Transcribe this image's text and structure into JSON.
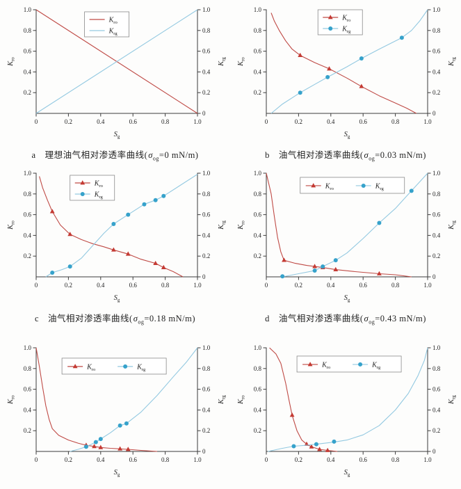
{
  "colors": {
    "oil_line": "#bf4a45",
    "oil_marker": "#c43a33",
    "gas_line": "#93c9e1",
    "gas_marker": "#36a2cb",
    "axis": "#3c3c3c",
    "text": "#222222",
    "legend_border": "#8a8a8a",
    "legend_fill": "#ffffff"
  },
  "axis_labels": {
    "x_main": "S",
    "x_sub": "g",
    "left_main": "K",
    "left_sub": "ro",
    "right_main": "K",
    "right_sub": "rg"
  },
  "legend_labels": {
    "oil_main": "K",
    "oil_sub": "ro",
    "gas_main": "K",
    "gas_sub": "rg"
  },
  "ticks": {
    "x": [
      "0",
      "0.2",
      "0.4",
      "0.6",
      "0.8",
      "1.0"
    ],
    "x_vals": [
      0,
      0.2,
      0.4,
      0.6,
      0.8,
      1.0
    ],
    "y_left": [
      "0.2",
      "0.4",
      "0.6",
      "0.8",
      "1.0"
    ],
    "y_left_vals": [
      0.2,
      0.4,
      0.6,
      0.8,
      1.0
    ],
    "y_right": [
      "0",
      "0.2",
      "0.4",
      "0.6",
      "0.8",
      "1.0"
    ],
    "y_right_vals": [
      0,
      0.2,
      0.4,
      0.6,
      0.8,
      1.0
    ]
  },
  "chart_data": [
    {
      "id": "a",
      "type": "line",
      "caption": {
        "label": "a",
        "pre": "理想油气相对渗透率曲线(",
        "sigma": "σ",
        "sub": "og",
        "post": "=0 mN/m)"
      },
      "xlabel": "S_g",
      "ylabel_left": "K_ro",
      "ylabel_right": "K_rg",
      "xlim": [
        0,
        1
      ],
      "ylim": [
        0,
        1
      ],
      "legend": {
        "orientation": "vertical",
        "x": 0.3,
        "y": 0.98,
        "markers": false
      },
      "series": [
        {
          "name": "K_ro",
          "axis": "left",
          "color_key": "oil",
          "marker": "triangle",
          "curve": [
            [
              0,
              1
            ],
            [
              1,
              0
            ]
          ],
          "markers": []
        },
        {
          "name": "K_rg",
          "axis": "right",
          "color_key": "gas",
          "marker": "circle",
          "curve": [
            [
              0,
              0
            ],
            [
              1,
              1
            ]
          ],
          "markers": []
        }
      ]
    },
    {
      "id": "b",
      "type": "line",
      "caption": {
        "label": "b",
        "pre": "油气相对渗透率曲线(",
        "sigma": "σ",
        "sub": "og",
        "post": "=0.03 mN/m)"
      },
      "xlabel": "S_g",
      "ylabel_left": "K_ro",
      "ylabel_right": "K_rg",
      "xlim": [
        0,
        1
      ],
      "ylim": [
        0,
        1
      ],
      "legend": {
        "orientation": "vertical",
        "x": 0.32,
        "y": 1.0,
        "markers": true
      },
      "series": [
        {
          "name": "K_ro",
          "axis": "left",
          "color_key": "oil",
          "marker": "triangle",
          "curve": [
            [
              0.03,
              0.97
            ],
            [
              0.05,
              0.89
            ],
            [
              0.08,
              0.8
            ],
            [
              0.12,
              0.7
            ],
            [
              0.16,
              0.62
            ],
            [
              0.21,
              0.56
            ],
            [
              0.3,
              0.49
            ],
            [
              0.39,
              0.43
            ],
            [
              0.5,
              0.34
            ],
            [
              0.59,
              0.26
            ],
            [
              0.7,
              0.17
            ],
            [
              0.8,
              0.1
            ],
            [
              0.87,
              0.05
            ],
            [
              0.93,
              0.0
            ]
          ],
          "markers": [
            [
              0.21,
              0.56
            ],
            [
              0.39,
              0.43
            ],
            [
              0.59,
              0.26
            ]
          ]
        },
        {
          "name": "K_rg",
          "axis": "right",
          "color_key": "gas",
          "marker": "circle",
          "curve": [
            [
              0.03,
              0.0
            ],
            [
              0.1,
              0.09
            ],
            [
              0.21,
              0.2
            ],
            [
              0.3,
              0.28
            ],
            [
              0.38,
              0.35
            ],
            [
              0.5,
              0.45
            ],
            [
              0.59,
              0.53
            ],
            [
              0.7,
              0.62
            ],
            [
              0.84,
              0.73
            ],
            [
              0.9,
              0.8
            ],
            [
              0.95,
              0.89
            ],
            [
              1.0,
              1.0
            ]
          ],
          "markers": [
            [
              0.21,
              0.2
            ],
            [
              0.38,
              0.35
            ],
            [
              0.59,
              0.53
            ],
            [
              0.84,
              0.73
            ]
          ]
        }
      ]
    },
    {
      "id": "c",
      "type": "line",
      "caption": {
        "label": "c",
        "pre": "油气相对渗透率曲线(",
        "sigma": "σ",
        "sub": "og",
        "post": "=0.18 mN/m)"
      },
      "xlabel": "S_g",
      "ylabel_left": "K_ro",
      "ylabel_right": "K_rg",
      "xlim": [
        0,
        1
      ],
      "ylim": [
        0,
        1
      ],
      "legend": {
        "orientation": "vertical",
        "x": 0.21,
        "y": 0.98,
        "markers": true
      },
      "series": [
        {
          "name": "K_ro",
          "axis": "left",
          "color_key": "oil",
          "marker": "triangle",
          "curve": [
            [
              0.02,
              0.97
            ],
            [
              0.04,
              0.86
            ],
            [
              0.07,
              0.74
            ],
            [
              0.1,
              0.63
            ],
            [
              0.15,
              0.5
            ],
            [
              0.21,
              0.41
            ],
            [
              0.28,
              0.36
            ],
            [
              0.35,
              0.32
            ],
            [
              0.42,
              0.29
            ],
            [
              0.48,
              0.26
            ],
            [
              0.57,
              0.22
            ],
            [
              0.65,
              0.17
            ],
            [
              0.74,
              0.13
            ],
            [
              0.79,
              0.09
            ],
            [
              0.85,
              0.05
            ],
            [
              0.91,
              0.0
            ]
          ],
          "markers": [
            [
              0.1,
              0.63
            ],
            [
              0.21,
              0.41
            ],
            [
              0.48,
              0.26
            ],
            [
              0.57,
              0.22
            ],
            [
              0.74,
              0.13
            ],
            [
              0.79,
              0.09
            ]
          ]
        },
        {
          "name": "K_rg",
          "axis": "right",
          "color_key": "gas",
          "marker": "circle",
          "curve": [
            [
              0.06,
              0.0
            ],
            [
              0.1,
              0.04
            ],
            [
              0.16,
              0.07
            ],
            [
              0.21,
              0.1
            ],
            [
              0.28,
              0.18
            ],
            [
              0.35,
              0.3
            ],
            [
              0.42,
              0.42
            ],
            [
              0.48,
              0.51
            ],
            [
              0.57,
              0.6
            ],
            [
              0.67,
              0.7
            ],
            [
              0.74,
              0.74
            ],
            [
              0.79,
              0.78
            ],
            [
              0.88,
              0.87
            ],
            [
              1.0,
              0.99
            ]
          ],
          "markers": [
            [
              0.1,
              0.04
            ],
            [
              0.21,
              0.1
            ],
            [
              0.48,
              0.51
            ],
            [
              0.57,
              0.6
            ],
            [
              0.67,
              0.7
            ],
            [
              0.74,
              0.74
            ],
            [
              0.79,
              0.78
            ]
          ]
        }
      ]
    },
    {
      "id": "d",
      "type": "line",
      "caption": {
        "label": "d",
        "pre": "油气相对渗透率曲线(",
        "sigma": "σ",
        "sub": "og",
        "post": "=0.43 mN/m)"
      },
      "xlabel": "S_g",
      "ylabel_left": "K_ro",
      "ylabel_right": "K_rg",
      "xlim": [
        0,
        1
      ],
      "ylim": [
        0,
        1
      ],
      "legend": {
        "orientation": "horizontal",
        "x": 0.21,
        "y": 0.96,
        "markers": true
      },
      "series": [
        {
          "name": "K_ro",
          "axis": "left",
          "color_key": "oil",
          "marker": "triangle",
          "curve": [
            [
              0.0,
              1.0
            ],
            [
              0.03,
              0.8
            ],
            [
              0.05,
              0.58
            ],
            [
              0.07,
              0.38
            ],
            [
              0.09,
              0.24
            ],
            [
              0.11,
              0.16
            ],
            [
              0.18,
              0.13
            ],
            [
              0.25,
              0.11
            ],
            [
              0.3,
              0.1
            ],
            [
              0.35,
              0.09
            ],
            [
              0.43,
              0.07
            ],
            [
              0.55,
              0.05
            ],
            [
              0.7,
              0.03
            ],
            [
              0.8,
              0.02
            ],
            [
              0.9,
              0.0
            ]
          ],
          "markers": [
            [
              0.11,
              0.16
            ],
            [
              0.3,
              0.1
            ],
            [
              0.35,
              0.09
            ],
            [
              0.43,
              0.07
            ],
            [
              0.7,
              0.03
            ]
          ]
        },
        {
          "name": "K_rg",
          "axis": "right",
          "color_key": "gas",
          "marker": "circle",
          "curve": [
            [
              0.1,
              0.0
            ],
            [
              0.2,
              0.03
            ],
            [
              0.3,
              0.06
            ],
            [
              0.35,
              0.1
            ],
            [
              0.43,
              0.16
            ],
            [
              0.5,
              0.23
            ],
            [
              0.6,
              0.37
            ],
            [
              0.7,
              0.52
            ],
            [
              0.8,
              0.66
            ],
            [
              0.9,
              0.83
            ],
            [
              1.0,
              1.0
            ]
          ],
          "markers": [
            [
              0.1,
              0.005
            ],
            [
              0.3,
              0.06
            ],
            [
              0.35,
              0.1
            ],
            [
              0.43,
              0.16
            ],
            [
              0.7,
              0.52
            ],
            [
              0.9,
              0.83
            ]
          ]
        }
      ]
    },
    {
      "id": "e",
      "type": "line",
      "caption": null,
      "xlabel": "S_g",
      "ylabel_left": "K_ro",
      "ylabel_right": "K_rg",
      "xlim": [
        0,
        1
      ],
      "ylim": [
        0,
        1
      ],
      "legend": {
        "orientation": "horizontal",
        "x": 0.16,
        "y": 0.9,
        "markers": true
      },
      "series": [
        {
          "name": "K_ro",
          "axis": "left",
          "color_key": "oil",
          "marker": "triangle",
          "curve": [
            [
              0.0,
              1.0
            ],
            [
              0.02,
              0.82
            ],
            [
              0.04,
              0.62
            ],
            [
              0.06,
              0.44
            ],
            [
              0.08,
              0.31
            ],
            [
              0.1,
              0.22
            ],
            [
              0.14,
              0.155
            ],
            [
              0.2,
              0.11
            ],
            [
              0.26,
              0.08
            ],
            [
              0.31,
              0.06
            ],
            [
              0.36,
              0.048
            ],
            [
              0.4,
              0.038
            ],
            [
              0.46,
              0.03
            ],
            [
              0.52,
              0.025
            ],
            [
              0.57,
              0.02
            ],
            [
              0.65,
              0.01
            ],
            [
              0.75,
              0.0
            ]
          ],
          "markers": [
            [
              0.31,
              0.06
            ],
            [
              0.36,
              0.048
            ],
            [
              0.4,
              0.038
            ],
            [
              0.52,
              0.025
            ],
            [
              0.57,
              0.02
            ]
          ]
        },
        {
          "name": "K_rg",
          "axis": "right",
          "color_key": "gas",
          "marker": "circle",
          "curve": [
            [
              0.21,
              0.0
            ],
            [
              0.26,
              0.02
            ],
            [
              0.31,
              0.045
            ],
            [
              0.37,
              0.09
            ],
            [
              0.4,
              0.12
            ],
            [
              0.46,
              0.18
            ],
            [
              0.52,
              0.25
            ],
            [
              0.56,
              0.27
            ],
            [
              0.65,
              0.38
            ],
            [
              0.75,
              0.54
            ],
            [
              0.85,
              0.72
            ],
            [
              0.93,
              0.86
            ],
            [
              1.0,
              1.0
            ]
          ],
          "markers": [
            [
              0.31,
              0.045
            ],
            [
              0.37,
              0.09
            ],
            [
              0.4,
              0.12
            ],
            [
              0.52,
              0.25
            ],
            [
              0.56,
              0.27
            ]
          ]
        }
      ]
    },
    {
      "id": "f",
      "type": "line",
      "caption": null,
      "xlabel": "S_g",
      "ylabel_left": "K_ro",
      "ylabel_right": "K_rg",
      "xlim": [
        0,
        1
      ],
      "ylim": [
        0,
        1
      ],
      "legend": {
        "orientation": "horizontal",
        "x": 0.19,
        "y": 0.92,
        "markers": true
      },
      "series": [
        {
          "name": "K_ro",
          "axis": "left",
          "color_key": "oil",
          "marker": "triangle",
          "curve": [
            [
              0.02,
              1.0
            ],
            [
              0.06,
              0.94
            ],
            [
              0.09,
              0.85
            ],
            [
              0.12,
              0.66
            ],
            [
              0.14,
              0.5
            ],
            [
              0.16,
              0.35
            ],
            [
              0.19,
              0.2
            ],
            [
              0.22,
              0.11
            ],
            [
              0.25,
              0.07
            ],
            [
              0.28,
              0.045
            ],
            [
              0.33,
              0.02
            ],
            [
              0.38,
              0.01
            ],
            [
              0.44,
              0.0
            ]
          ],
          "markers": [
            [
              0.16,
              0.35
            ],
            [
              0.25,
              0.07
            ],
            [
              0.28,
              0.045
            ],
            [
              0.33,
              0.02
            ],
            [
              0.38,
              0.01
            ]
          ]
        },
        {
          "name": "K_rg",
          "axis": "right",
          "color_key": "gas",
          "marker": "circle",
          "curve": [
            [
              0.01,
              0.0
            ],
            [
              0.1,
              0.03
            ],
            [
              0.17,
              0.05
            ],
            [
              0.25,
              0.06
            ],
            [
              0.31,
              0.07
            ],
            [
              0.42,
              0.09
            ],
            [
              0.5,
              0.11
            ],
            [
              0.6,
              0.16
            ],
            [
              0.7,
              0.25
            ],
            [
              0.8,
              0.4
            ],
            [
              0.88,
              0.56
            ],
            [
              0.94,
              0.73
            ],
            [
              0.98,
              0.88
            ],
            [
              1.0,
              1.0
            ]
          ],
          "markers": [
            [
              0.17,
              0.05
            ],
            [
              0.31,
              0.07
            ],
            [
              0.42,
              0.095
            ]
          ]
        }
      ]
    }
  ]
}
